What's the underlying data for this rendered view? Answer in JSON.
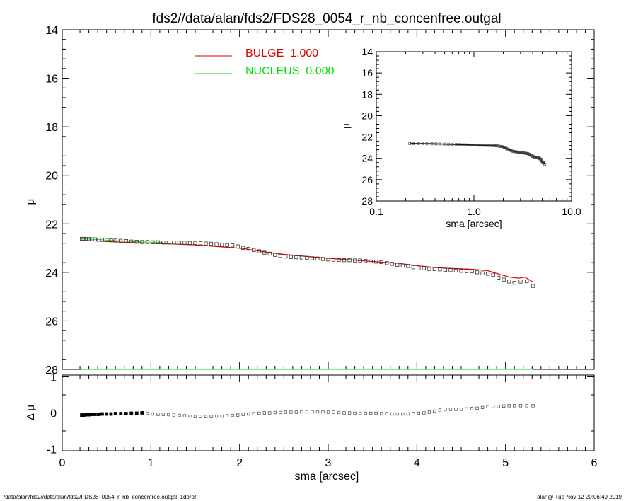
{
  "title": "fds2//data/alan/fds2/FDS28_0054_r_nb_concenfree.outgal",
  "footer": {
    "left": "/data/alan/fds2//data/alan/fds2/FDS28_0054_r_nb_concenfree.outgal_1dprof",
    "right": "alan@  Tue Nov 12 20:06:49 2019"
  },
  "legend": {
    "entries": [
      {
        "label": "BULGE  1.000",
        "color": "#dd0000"
      },
      {
        "label": "NUCLEUS  0.000",
        "color": "#00dd00"
      }
    ]
  },
  "colors": {
    "bulge": "#dd0000",
    "nucleus": "#00dd00",
    "data": "#000000",
    "axis": "#000000"
  },
  "chart_data": [
    {
      "name": "main-profile",
      "type": "scatter",
      "xlabel": "sma [arcsec]",
      "ylabel": "μ",
      "xlim": [
        0,
        6
      ],
      "ylim": [
        28,
        14
      ],
      "x_ticks": [
        "0",
        "1",
        "2",
        "3",
        "4",
        "5",
        "6"
      ],
      "y_ticks": [
        "14",
        "16",
        "18",
        "20",
        "22",
        "24",
        "26",
        "28"
      ],
      "x_tick_values": [
        0,
        1,
        2,
        3,
        4,
        5,
        6
      ],
      "y_tick_values": [
        14,
        16,
        18,
        20,
        22,
        24,
        26,
        28
      ],
      "grid": false,
      "legend_position": "top-left",
      "data_x": [
        0.22,
        0.24,
        0.27,
        0.3,
        0.33,
        0.37,
        0.41,
        0.45,
        0.5,
        0.55,
        0.6,
        0.66,
        0.72,
        0.78,
        0.84,
        0.9,
        0.96,
        1.02,
        1.08,
        1.14,
        1.2,
        1.26,
        1.32,
        1.38,
        1.44,
        1.5,
        1.56,
        1.62,
        1.68,
        1.74,
        1.8,
        1.86,
        1.92,
        1.98,
        2.04,
        2.1,
        2.16,
        2.22,
        2.28,
        2.34,
        2.4,
        2.46,
        2.52,
        2.58,
        2.64,
        2.7,
        2.76,
        2.82,
        2.88,
        2.94,
        3.0,
        3.06,
        3.12,
        3.18,
        3.24,
        3.3,
        3.36,
        3.42,
        3.48,
        3.54,
        3.6,
        3.66,
        3.72,
        3.78,
        3.84,
        3.9,
        3.96,
        4.02,
        4.08,
        4.14,
        4.2,
        4.26,
        4.32,
        4.38,
        4.44,
        4.5,
        4.56,
        4.62,
        4.68,
        4.74,
        4.8,
        4.86,
        4.92,
        4.98,
        5.04,
        5.1,
        5.17,
        5.24,
        5.31
      ],
      "data_y": [
        22.62,
        22.62,
        22.63,
        22.63,
        22.64,
        22.64,
        22.65,
        22.66,
        22.67,
        22.68,
        22.69,
        22.7,
        22.71,
        22.73,
        22.74,
        22.75,
        22.75,
        22.76,
        22.76,
        22.77,
        22.77,
        22.77,
        22.78,
        22.78,
        22.79,
        22.79,
        22.8,
        22.81,
        22.82,
        22.84,
        22.86,
        22.88,
        22.89,
        22.93,
        22.99,
        23.03,
        23.08,
        23.13,
        23.19,
        23.23,
        23.28,
        23.32,
        23.35,
        23.37,
        23.38,
        23.39,
        23.4,
        23.42,
        23.43,
        23.45,
        23.47,
        23.48,
        23.49,
        23.5,
        23.5,
        23.51,
        23.51,
        23.53,
        23.55,
        23.56,
        23.58,
        23.62,
        23.65,
        23.69,
        23.72,
        23.74,
        23.79,
        23.84,
        23.83,
        23.86,
        23.87,
        23.88,
        23.9,
        23.91,
        23.93,
        23.94,
        23.95,
        23.96,
        24.0,
        24.04,
        24.06,
        24.1,
        24.22,
        24.3,
        24.38,
        24.43,
        24.38,
        24.37,
        24.56
      ],
      "bulge_x": [
        0.22,
        0.5,
        1.0,
        1.5,
        1.8,
        2.05,
        2.25,
        2.5,
        2.8,
        3.0,
        3.3,
        3.6,
        3.8,
        4.0,
        4.2,
        4.4,
        4.6,
        4.8,
        4.95,
        5.05,
        5.15,
        5.22,
        5.31
      ],
      "bulge_y": [
        22.68,
        22.73,
        22.8,
        22.87,
        22.95,
        23.02,
        23.14,
        23.26,
        23.36,
        23.42,
        23.5,
        23.58,
        23.63,
        23.72,
        23.8,
        23.84,
        23.87,
        23.93,
        24.1,
        24.2,
        24.24,
        24.2,
        24.4
      ],
      "nucleus_x": [
        0.22,
        0.5,
        1.0,
        1.5,
        2.0,
        2.5,
        3.0,
        3.5,
        4.0,
        4.5,
        5.0,
        5.31
      ],
      "nucleus_y": [
        28.5,
        28.5,
        28.5,
        28.5,
        28.5,
        28.5,
        28.5,
        28.5,
        28.5,
        28.5,
        28.5,
        28.5
      ]
    },
    {
      "name": "inset-log-profile",
      "type": "scatter",
      "xlabel": "sma [arcsec]",
      "ylabel": "μ",
      "x_scale": "log",
      "xlim": [
        0.1,
        10
      ],
      "ylim": [
        28,
        14
      ],
      "x_ticks": [
        "0.1",
        "1.0",
        "10.0"
      ],
      "x_tick_values": [
        0.1,
        1.0,
        10.0
      ],
      "y_ticks": [
        "14",
        "16",
        "18",
        "20",
        "22",
        "24",
        "26",
        "28"
      ],
      "y_tick_values": [
        14,
        16,
        18,
        20,
        22,
        24,
        26,
        28
      ]
    },
    {
      "name": "residual-panel",
      "type": "scatter",
      "xlabel": "sma [arcsec]",
      "ylabel": "Δ μ",
      "xlim": [
        0,
        6
      ],
      "ylim": [
        -1.05,
        1.05
      ],
      "x_ticks": [
        "0",
        "1",
        "2",
        "3",
        "4",
        "5",
        "6"
      ],
      "x_tick_values": [
        0,
        1,
        2,
        3,
        4,
        5,
        6
      ],
      "y_ticks": [
        "1",
        "0",
        "-1"
      ],
      "y_tick_values": [
        1,
        0,
        -1
      ],
      "residual_y": [
        -0.06,
        -0.06,
        -0.05,
        -0.05,
        -0.04,
        -0.04,
        -0.04,
        -0.03,
        -0.03,
        -0.03,
        -0.02,
        -0.02,
        -0.02,
        -0.01,
        -0.01,
        0.0,
        -0.01,
        -0.03,
        -0.04,
        -0.04,
        -0.05,
        -0.06,
        -0.07,
        -0.08,
        -0.09,
        -0.1,
        -0.1,
        -0.1,
        -0.1,
        -0.09,
        -0.09,
        -0.08,
        -0.07,
        -0.06,
        -0.04,
        -0.03,
        -0.02,
        -0.01,
        0.0,
        0.0,
        0.01,
        0.01,
        0.02,
        0.02,
        0.02,
        0.03,
        0.03,
        0.03,
        0.03,
        0.03,
        0.02,
        0.02,
        0.01,
        0.0,
        0.0,
        -0.01,
        -0.01,
        -0.01,
        -0.01,
        -0.01,
        -0.02,
        -0.02,
        -0.03,
        -0.03,
        -0.03,
        -0.03,
        -0.02,
        -0.01,
        0.0,
        0.02,
        0.05,
        0.08,
        0.1,
        0.1,
        0.1,
        0.1,
        0.11,
        0.12,
        0.13,
        0.15,
        0.17,
        0.18,
        0.18,
        0.19,
        0.2,
        0.2,
        0.2,
        0.2,
        0.2
      ]
    }
  ]
}
